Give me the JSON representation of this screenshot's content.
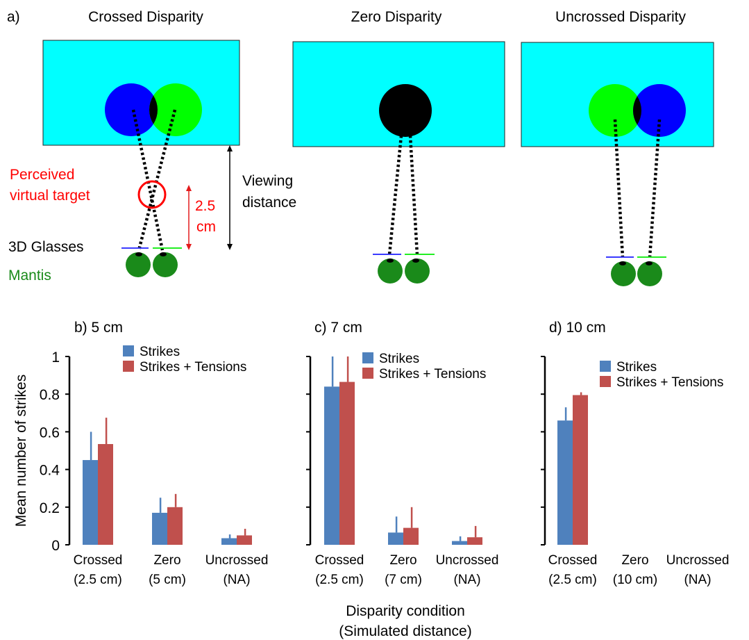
{
  "panel_a": {
    "label": "a)",
    "diagrams": [
      {
        "title": "Crossed Disparity",
        "kind": "crossed"
      },
      {
        "title": "Zero Disparity",
        "kind": "zero"
      },
      {
        "title": "Uncrossed Disparity",
        "kind": "uncrossed"
      }
    ],
    "annotations": {
      "perceived_line1": "Perceived",
      "perceived_line2": "virtual target",
      "distance_value": "2.5",
      "distance_unit": "cm",
      "viewing_line1": "Viewing",
      "viewing_line2": "distance",
      "glasses": "3D Glasses",
      "mantis": "Mantis"
    },
    "colors": {
      "screen": "#00ffff",
      "blue_disc": "#0000ff",
      "green_disc": "#00ff00",
      "overlap": "#000000",
      "eye": "#1a8a1a",
      "perceived": "#ff0000",
      "mantis_text": "#1a8a1a"
    }
  },
  "chart_data": [
    {
      "type": "bar",
      "title": "b) 5 cm",
      "categories": [
        [
          "Crossed",
          "(2.5 cm)"
        ],
        [
          "Zero",
          "(5 cm)"
        ],
        [
          "Uncrossed",
          "(NA)"
        ]
      ],
      "series": [
        {
          "name": "Strikes",
          "values": [
            0.45,
            0.17,
            0.035
          ],
          "errors": [
            0.15,
            0.08,
            0.02
          ],
          "color": "#4f81bd"
        },
        {
          "name": "Strikes + Tensions",
          "values": [
            0.535,
            0.2,
            0.05
          ],
          "errors": [
            0.14,
            0.07,
            0.035
          ],
          "color": "#c0504d"
        }
      ],
      "ylabel": "Mean number of strikes",
      "ylim": [
        0,
        1
      ],
      "yticks": [
        "0",
        "0.2",
        "0.4",
        "0.6",
        "0.8",
        "1"
      ],
      "legend": "top-right"
    },
    {
      "type": "bar",
      "title": "c) 7 cm",
      "categories": [
        [
          "Crossed",
          "(2.5 cm)"
        ],
        [
          "Zero",
          "(7 cm)"
        ],
        [
          "Uncrossed",
          "(NA)"
        ]
      ],
      "series": [
        {
          "name": "Strikes",
          "values": [
            0.84,
            0.065,
            0.02
          ],
          "errors": [
            0.16,
            0.085,
            0.025
          ],
          "color": "#4f81bd"
        },
        {
          "name": "Strikes + Tensions",
          "values": [
            0.865,
            0.09,
            0.04
          ],
          "errors": [
            0.135,
            0.11,
            0.06
          ],
          "color": "#c0504d"
        }
      ],
      "ylim": [
        0,
        1
      ],
      "legend": "top-right"
    },
    {
      "type": "bar",
      "title": "d) 10 cm",
      "categories": [
        [
          "Crossed",
          "(2.5 cm)"
        ],
        [
          "Zero",
          "(10 cm)"
        ],
        [
          "Uncrossed",
          "(NA)"
        ]
      ],
      "series": [
        {
          "name": "Strikes",
          "values": [
            0.66,
            0,
            0
          ],
          "errors": [
            0.07,
            0,
            0
          ],
          "color": "#4f81bd"
        },
        {
          "name": "Strikes + Tensions",
          "values": [
            0.795,
            0,
            0
          ],
          "errors": [
            0.015,
            0,
            0
          ],
          "color": "#c0504d"
        }
      ],
      "ylim": [
        0,
        1
      ],
      "legend": "top-right"
    }
  ],
  "shared_xlabel": [
    "Disparity condition",
    "(Simulated distance)"
  ]
}
